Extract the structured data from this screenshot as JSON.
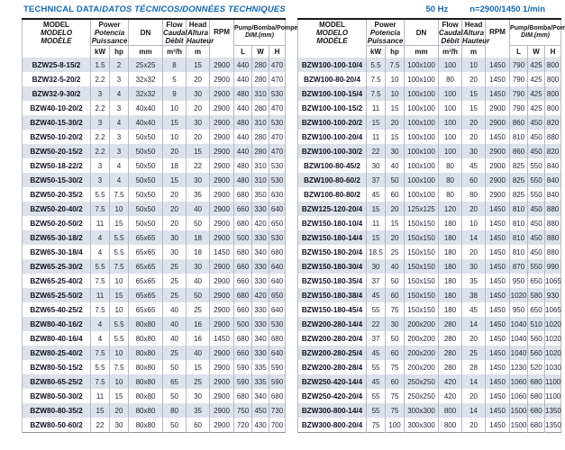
{
  "title": {
    "main": "TECHNICAL DATA/",
    "rest": "DATOS TÉCNICOS/DONNÉES TECHNIQUES",
    "frequency": "50 Hz",
    "speed": "n=2900/1450 1/min"
  },
  "colors": {
    "accent_blue": "#1268b3",
    "row_stripe": "#dce1ea",
    "grid_line": "#b3b8c1",
    "top_rule": "#1b1b1b"
  },
  "header": {
    "model": [
      "MODEL",
      "MODELO",
      "MODÈLE"
    ],
    "power": [
      "Power",
      "Potencia",
      "Puissance"
    ],
    "power_units": [
      "kW",
      "hp"
    ],
    "dn": "DN",
    "dn_unit": "mm",
    "flow": [
      "Flow",
      "Caudal",
      "Débit"
    ],
    "flow_unit": "m³/h",
    "head": [
      "Head",
      "Altura",
      "Hauteur"
    ],
    "head_unit": "m",
    "rpm": "RPM",
    "dim": [
      "Pump/Bomba/Pompe",
      "DIM.(mm)"
    ],
    "dim_units": [
      "L",
      "W",
      "H"
    ]
  },
  "tables": [
    {
      "rows": [
        [
          "BZW25-8-15/2",
          "1.5",
          "2",
          "25x25",
          "8",
          "15",
          "2900",
          "440",
          "280",
          "470"
        ],
        [
          "BZW32-5-20/2",
          "2.2",
          "3",
          "32x32",
          "5",
          "20",
          "2900",
          "440",
          "280",
          "470"
        ],
        [
          "BZW32-9-30/2",
          "3",
          "4",
          "32x32",
          "9",
          "30",
          "2900",
          "480",
          "310",
          "530"
        ],
        [
          "BZW40-10-20/2",
          "2.2",
          "3",
          "40x40",
          "10",
          "20",
          "2900",
          "440",
          "280",
          "470"
        ],
        [
          "BZW40-15-30/2",
          "3",
          "4",
          "40x40",
          "15",
          "30",
          "2900",
          "480",
          "310",
          "530"
        ],
        [
          "BZW50-10-20/2",
          "2.2",
          "3",
          "50x50",
          "10",
          "20",
          "2900",
          "440",
          "280",
          "470"
        ],
        [
          "BZW50-20-15/2",
          "2.2",
          "3",
          "50x50",
          "20",
          "15",
          "2900",
          "440",
          "280",
          "470"
        ],
        [
          "BZW50-18-22/2",
          "3",
          "4",
          "50x50",
          "18",
          "22",
          "2900",
          "480",
          "310",
          "530"
        ],
        [
          "BZW50-15-30/2",
          "3",
          "4",
          "50x50",
          "15",
          "30",
          "2900",
          "480",
          "310",
          "530"
        ],
        [
          "BZW50-20-35/2",
          "5.5",
          "7.5",
          "50x50",
          "20",
          "35",
          "2900",
          "680",
          "350",
          "630"
        ],
        [
          "BZW50-20-40/2",
          "7.5",
          "10",
          "50x50",
          "20",
          "40",
          "2900",
          "660",
          "330",
          "640"
        ],
        [
          "BZW50-20-50/2",
          "11",
          "15",
          "50x50",
          "20",
          "50",
          "2900",
          "680",
          "420",
          "650"
        ],
        [
          "BZW65-30-18/2",
          "4",
          "5.5",
          "65x65",
          "30",
          "18",
          "2900",
          "500",
          "330",
          "530"
        ],
        [
          "BZW65-30-18/4",
          "4",
          "5.5",
          "65x65",
          "30",
          "18",
          "1450",
          "680",
          "340",
          "680"
        ],
        [
          "BZW65-25-30/2",
          "5.5",
          "7.5",
          "65x65",
          "25",
          "30",
          "2900",
          "660",
          "330",
          "640"
        ],
        [
          "BZW65-25-40/2",
          "7.5",
          "10",
          "65x65",
          "25",
          "40",
          "2900",
          "660",
          "330",
          "640"
        ],
        [
          "BZW65-25-50/2",
          "11",
          "15",
          "65x65",
          "25",
          "50",
          "2900",
          "680",
          "420",
          "650"
        ],
        [
          "BZW65-40-25/2",
          "7.5",
          "10",
          "65x65",
          "40",
          "25",
          "2900",
          "660",
          "330",
          "640"
        ],
        [
          "BZW80-40-16/2",
          "4",
          "5.5",
          "80x80",
          "40",
          "16",
          "2900",
          "500",
          "330",
          "530"
        ],
        [
          "BZW80-40-16/4",
          "4",
          "5.5",
          "80x80",
          "40",
          "16",
          "1450",
          "680",
          "340",
          "680"
        ],
        [
          "BZW80-25-40/2",
          "7.5",
          "10",
          "80x80",
          "25",
          "40",
          "2900",
          "660",
          "330",
          "640"
        ],
        [
          "BZW80-50-15/2",
          "5.5",
          "7.5",
          "80x80",
          "50",
          "15",
          "2900",
          "590",
          "335",
          "590"
        ],
        [
          "BZW80-65-25/2",
          "7.5",
          "10",
          "80x80",
          "65",
          "25",
          "2900",
          "590",
          "335",
          "590"
        ],
        [
          "BZW80-50-30/2",
          "11",
          "15",
          "80x80",
          "50",
          "30",
          "2900",
          "680",
          "340",
          "680"
        ],
        [
          "BZW80-80-35/2",
          "15",
          "20",
          "80x80",
          "80",
          "35",
          "2900",
          "750",
          "450",
          "730"
        ],
        [
          "BZW80-50-60/2",
          "22",
          "30",
          "80x80",
          "50",
          "60",
          "2900",
          "720",
          "430",
          "700"
        ]
      ]
    },
    {
      "rows": [
        [
          "BZW100-100-10/4",
          "5.5",
          "7.5",
          "100x100",
          "100",
          "10",
          "1450",
          "790",
          "425",
          "800"
        ],
        [
          "BZW100-80-20/4",
          "7.5",
          "10",
          "100x100",
          "80",
          "20",
          "1450",
          "790",
          "425",
          "800"
        ],
        [
          "BZW100-100-15/4",
          "7.5",
          "10",
          "100x100",
          "100",
          "15",
          "1450",
          "790",
          "425",
          "800"
        ],
        [
          "BZW100-100-15/2",
          "11",
          "15",
          "100x100",
          "100",
          "15",
          "2900",
          "790",
          "425",
          "800"
        ],
        [
          "BZW100-100-20/2",
          "15",
          "20",
          "100x100",
          "100",
          "20",
          "2900",
          "860",
          "450",
          "820"
        ],
        [
          "BZW100-100-20/4",
          "11",
          "15",
          "100x100",
          "100",
          "20",
          "1450",
          "810",
          "450",
          "880"
        ],
        [
          "BZW100-100-30/2",
          "22",
          "30",
          "100x100",
          "100",
          "30",
          "2900",
          "860",
          "450",
          "820"
        ],
        [
          "BZW100-80-45/2",
          "30",
          "40",
          "100x100",
          "80",
          "45",
          "2900",
          "825",
          "550",
          "840"
        ],
        [
          "BZW100-80-60/2",
          "37",
          "50",
          "100x100",
          "80",
          "60",
          "2900",
          "825",
          "550",
          "840"
        ],
        [
          "BZW100-80-80/2",
          "45",
          "60",
          "100x100",
          "80",
          "80",
          "2900",
          "825",
          "550",
          "840"
        ],
        [
          "BZW125-120-20/4",
          "15",
          "20",
          "125x125",
          "120",
          "20",
          "1450",
          "810",
          "450",
          "880"
        ],
        [
          "BZW150-180-10/4",
          "11",
          "15",
          "150x150",
          "180",
          "10",
          "1450",
          "810",
          "450",
          "880"
        ],
        [
          "BZW150-180-14/4",
          "15",
          "20",
          "150x150",
          "180",
          "14",
          "1450",
          "810",
          "450",
          "880"
        ],
        [
          "BZW150-180-20/4",
          "18.5",
          "25",
          "150x150",
          "180",
          "20",
          "1450",
          "810",
          "450",
          "880"
        ],
        [
          "BZW150-180-30/4",
          "30",
          "40",
          "150x150",
          "180",
          "30",
          "1450",
          "870",
          "550",
          "990"
        ],
        [
          "BZW150-180-35/4",
          "37",
          "50",
          "150x150",
          "180",
          "35",
          "1450",
          "950",
          "650",
          "1065"
        ],
        [
          "BZW150-180-38/4",
          "45",
          "60",
          "150x150",
          "180",
          "38",
          "1450",
          "1020",
          "580",
          "930"
        ],
        [
          "BZW150-180-45/4",
          "55",
          "75",
          "150x150",
          "180",
          "45",
          "1450",
          "950",
          "650",
          "1065"
        ],
        [
          "BZW200-280-14/4",
          "22",
          "30",
          "200x200",
          "280",
          "14",
          "1450",
          "1040",
          "510",
          "1020"
        ],
        [
          "BZW200-280-20/4",
          "37",
          "50",
          "200x200",
          "280",
          "20",
          "1450",
          "1040",
          "560",
          "1020"
        ],
        [
          "BZW200-280-25/4",
          "45",
          "60",
          "200x200",
          "280",
          "25",
          "1450",
          "1040",
          "560",
          "1020"
        ],
        [
          "BZW200-280-28/4",
          "55",
          "75",
          "200x200",
          "280",
          "28",
          "1450",
          "1230",
          "520",
          "1030"
        ],
        [
          "BZW250-420-14/4",
          "45",
          "60",
          "250x250",
          "420",
          "14",
          "1450",
          "1060",
          "680",
          "1100"
        ],
        [
          "BZW250-420-20/4",
          "55",
          "75",
          "250x250",
          "420",
          "20",
          "1450",
          "1060",
          "680",
          "1100"
        ],
        [
          "BZW300-800-14/4",
          "55",
          "75",
          "300x300",
          "800",
          "14",
          "1450",
          "1500",
          "680",
          "1350"
        ],
        [
          "BZW300-800-20/4",
          "75",
          "100",
          "300x300",
          "800",
          "20",
          "1450",
          "1500",
          "680",
          "1350"
        ]
      ]
    }
  ]
}
